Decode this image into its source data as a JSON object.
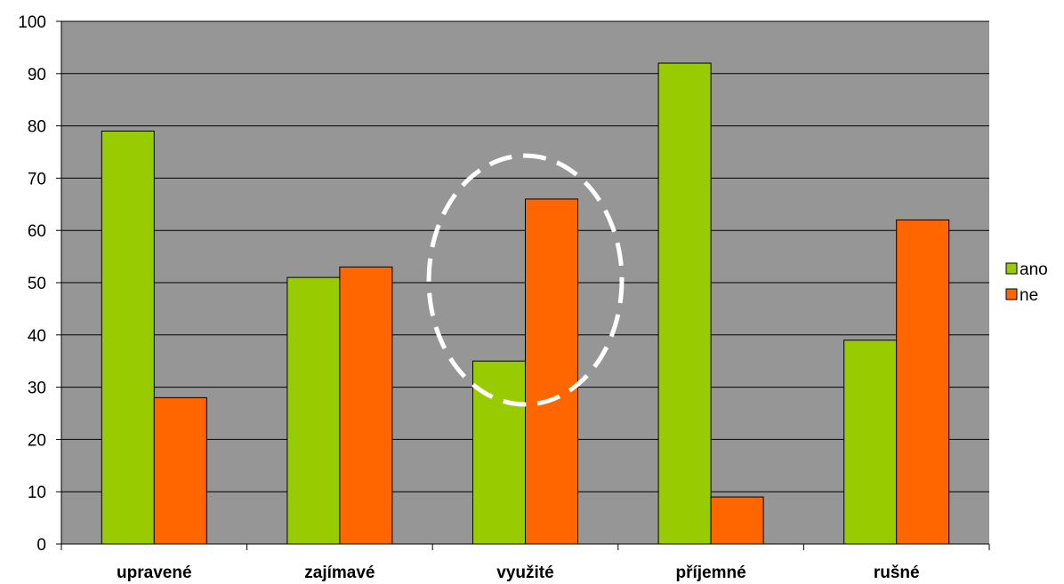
{
  "chart_data": {
    "type": "bar",
    "title": "",
    "xlabel": "",
    "ylabel": "",
    "categories": [
      "upravené",
      "zajímavé",
      "využité",
      "příjemné",
      "rušné"
    ],
    "series": [
      {
        "name": "ano",
        "color": "#99cc00",
        "values": [
          79,
          51,
          35,
          92,
          39
        ]
      },
      {
        "name": "ne",
        "color": "#ff6600",
        "values": [
          28,
          53,
          66,
          9,
          62
        ]
      }
    ],
    "ylim": [
      0,
      100
    ],
    "yticks": [
      0,
      10,
      20,
      30,
      40,
      50,
      60,
      70,
      80,
      90,
      100
    ],
    "grid": true,
    "legend_position": "right",
    "plot_background": "#969696",
    "annotations": [
      {
        "type": "dashed-ellipse",
        "color": "#ffffff",
        "around_category": "využité"
      }
    ]
  }
}
